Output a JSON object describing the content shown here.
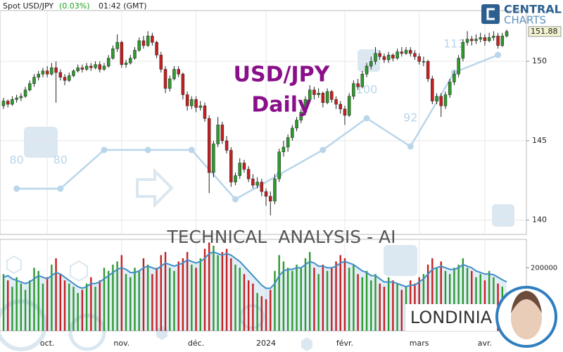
{
  "header": {
    "symbol": "Spot USD/JPY",
    "change": "(0.03%)",
    "time": "01:42 (GMT)"
  },
  "watermark": {
    "line1": "USD/JPY",
    "line2": "Daily",
    "banner": "TECHNICAL  ANALYSIS - AI",
    "author": "LONDINIA"
  },
  "brand": {
    "line1": "CENTRAL",
    "line2": "CHARTS"
  },
  "chart_data": [
    {
      "type": "candlestick",
      "up_color": "#2e9a2e",
      "down_color": "#c62020",
      "grid": true,
      "xlim": [
        -0.8,
        119.5
      ],
      "ylim": [
        139.1,
        153.2
      ],
      "yticks": [
        140,
        145,
        150
      ],
      "xticks": [
        {
          "value": 10,
          "label": "oct."
        },
        {
          "value": 27,
          "label": "nov."
        },
        {
          "value": 44,
          "label": "déc."
        },
        {
          "value": 60,
          "label": "2024"
        },
        {
          "value": 78,
          "label": "févr."
        },
        {
          "value": 95,
          "label": "mars"
        },
        {
          "value": 110,
          "label": "avr."
        }
      ],
      "ohlc": [
        [
          147.2,
          147.7,
          147.0,
          147.5
        ],
        [
          147.5,
          147.6,
          147.1,
          147.3
        ],
        [
          147.3,
          147.8,
          147.2,
          147.6
        ],
        [
          147.6,
          147.9,
          147.4,
          147.7
        ],
        [
          147.7,
          148.0,
          147.5,
          147.8
        ],
        [
          147.8,
          148.4,
          147.7,
          148.2
        ],
        [
          148.2,
          148.8,
          148.1,
          148.6
        ],
        [
          148.6,
          149.2,
          148.4,
          149.0
        ],
        [
          149.0,
          149.4,
          148.8,
          149.2
        ],
        [
          149.2,
          149.6,
          149.0,
          149.4
        ],
        [
          149.4,
          149.7,
          149.0,
          149.2
        ],
        [
          149.2,
          149.9,
          149.1,
          149.6
        ],
        [
          149.6,
          150.0,
          147.4,
          149.3
        ],
        [
          149.3,
          149.5,
          148.8,
          149.0
        ],
        [
          149.0,
          149.2,
          148.5,
          148.8
        ],
        [
          148.8,
          149.3,
          148.7,
          149.1
        ],
        [
          149.1,
          149.5,
          149.0,
          149.4
        ],
        [
          149.4,
          149.8,
          149.3,
          149.6
        ],
        [
          149.6,
          149.8,
          149.3,
          149.5
        ],
        [
          149.5,
          149.9,
          149.4,
          149.7
        ],
        [
          149.7,
          149.9,
          149.4,
          149.6
        ],
        [
          149.6,
          150.0,
          149.5,
          149.8
        ],
        [
          149.8,
          150.0,
          149.3,
          149.5
        ],
        [
          149.5,
          149.9,
          149.4,
          149.7
        ],
        [
          149.7,
          150.4,
          149.6,
          150.2
        ],
        [
          150.2,
          151.0,
          150.1,
          150.8
        ],
        [
          150.8,
          151.7,
          150.6,
          151.2
        ],
        [
          151.2,
          151.3,
          149.6,
          149.8
        ],
        [
          149.8,
          150.1,
          149.6,
          149.9
        ],
        [
          149.9,
          150.4,
          149.8,
          150.2
        ],
        [
          150.2,
          150.9,
          150.1,
          150.7
        ],
        [
          150.7,
          151.5,
          150.6,
          151.3
        ],
        [
          151.3,
          151.6,
          150.8,
          151.0
        ],
        [
          151.0,
          151.9,
          150.9,
          151.6
        ],
        [
          151.6,
          151.8,
          151.0,
          151.2
        ],
        [
          151.2,
          151.3,
          150.2,
          150.4
        ],
        [
          150.4,
          150.6,
          149.3,
          149.5
        ],
        [
          149.5,
          149.7,
          148.0,
          148.3
        ],
        [
          148.3,
          149.1,
          148.1,
          148.9
        ],
        [
          148.9,
          149.7,
          148.8,
          149.5
        ],
        [
          149.5,
          149.7,
          149.0,
          149.2
        ],
        [
          149.2,
          149.3,
          147.6,
          147.9
        ],
        [
          147.9,
          148.1,
          146.9,
          147.2
        ],
        [
          147.2,
          147.8,
          147.0,
          147.6
        ],
        [
          147.6,
          147.8,
          146.8,
          147.1
        ],
        [
          147.1,
          147.5,
          146.9,
          147.2
        ],
        [
          147.2,
          147.4,
          146.2,
          146.4
        ],
        [
          146.4,
          146.6,
          141.7,
          143.0
        ],
        [
          143.0,
          145.0,
          142.7,
          144.8
        ],
        [
          144.8,
          146.5,
          144.6,
          146.0
        ],
        [
          146.0,
          146.2,
          144.8,
          145.0
        ],
        [
          145.0,
          145.3,
          144.2,
          144.4
        ],
        [
          144.4,
          144.6,
          142.1,
          142.4
        ],
        [
          142.4,
          143.0,
          142.2,
          142.8
        ],
        [
          142.8,
          143.9,
          142.6,
          143.6
        ],
        [
          143.6,
          143.8,
          143.0,
          143.2
        ],
        [
          143.2,
          143.4,
          142.4,
          142.6
        ],
        [
          142.6,
          142.9,
          142.0,
          142.2
        ],
        [
          142.2,
          142.7,
          142.0,
          142.4
        ],
        [
          142.4,
          142.6,
          141.5,
          141.8
        ],
        [
          141.8,
          142.0,
          140.9,
          141.5
        ],
        [
          141.5,
          141.8,
          140.3,
          141.2
        ],
        [
          141.2,
          142.9,
          141.0,
          142.6
        ],
        [
          142.6,
          144.5,
          142.4,
          144.3
        ],
        [
          144.3,
          145.0,
          144.0,
          144.6
        ],
        [
          144.6,
          145.4,
          144.3,
          145.2
        ],
        [
          145.2,
          146.0,
          145.0,
          145.8
        ],
        [
          145.8,
          146.5,
          145.6,
          146.3
        ],
        [
          146.3,
          147.0,
          146.1,
          146.8
        ],
        [
          146.8,
          147.8,
          146.6,
          147.6
        ],
        [
          147.6,
          148.5,
          147.4,
          148.2
        ],
        [
          148.2,
          148.4,
          147.6,
          147.9
        ],
        [
          147.9,
          148.3,
          147.7,
          148.0
        ],
        [
          148.0,
          148.1,
          147.1,
          147.4
        ],
        [
          147.4,
          148.3,
          147.3,
          148.1
        ],
        [
          148.1,
          148.2,
          147.4,
          147.6
        ],
        [
          147.6,
          147.8,
          147.0,
          147.3
        ],
        [
          147.3,
          147.5,
          146.7,
          147.0
        ],
        [
          147.0,
          147.2,
          146.0,
          146.6
        ],
        [
          146.6,
          148.0,
          146.5,
          147.8
        ],
        [
          147.8,
          148.8,
          147.6,
          148.6
        ],
        [
          148.6,
          148.9,
          148.2,
          148.4
        ],
        [
          148.4,
          149.4,
          148.3,
          149.2
        ],
        [
          149.2,
          149.9,
          149.0,
          149.7
        ],
        [
          149.7,
          150.3,
          149.5,
          150.0
        ],
        [
          150.0,
          150.9,
          149.8,
          150.5
        ],
        [
          150.5,
          150.7,
          150.1,
          150.3
        ],
        [
          150.3,
          150.5,
          149.9,
          150.1
        ],
        [
          150.1,
          150.6,
          149.9,
          150.4
        ],
        [
          150.4,
          150.5,
          150.0,
          150.2
        ],
        [
          150.2,
          150.8,
          150.1,
          150.6
        ],
        [
          150.6,
          150.9,
          150.3,
          150.5
        ],
        [
          150.5,
          150.9,
          150.4,
          150.7
        ],
        [
          150.7,
          150.9,
          150.3,
          150.5
        ],
        [
          150.5,
          150.7,
          150.1,
          150.3
        ],
        [
          150.3,
          150.5,
          149.8,
          150.0
        ],
        [
          150.0,
          150.3,
          149.7,
          150.0
        ],
        [
          150.0,
          150.1,
          148.7,
          148.9
        ],
        [
          148.9,
          149.1,
          147.3,
          147.5
        ],
        [
          147.5,
          148.0,
          147.3,
          147.8
        ],
        [
          147.8,
          148.0,
          146.5,
          147.2
        ],
        [
          147.2,
          148.1,
          147.0,
          147.9
        ],
        [
          147.9,
          148.9,
          147.7,
          148.7
        ],
        [
          148.7,
          149.4,
          148.5,
          149.2
        ],
        [
          149.2,
          150.4,
          149.0,
          150.2
        ],
        [
          150.2,
          151.4,
          150.0,
          151.2
        ],
        [
          151.2,
          151.9,
          151.0,
          151.4
        ],
        [
          151.4,
          151.6,
          151.0,
          151.3
        ],
        [
          151.3,
          151.7,
          151.1,
          151.4
        ],
        [
          151.4,
          151.8,
          151.2,
          151.5
        ],
        [
          151.5,
          151.7,
          151.0,
          151.3
        ],
        [
          151.3,
          151.8,
          151.2,
          151.5
        ],
        [
          151.5,
          151.9,
          151.3,
          151.6
        ],
        [
          151.6,
          151.8,
          150.8,
          151.0
        ],
        [
          151.0,
          151.8,
          150.9,
          151.6
        ],
        [
          151.6,
          152.0,
          151.5,
          151.88
        ]
      ]
    },
    {
      "type": "bar",
      "ylim": [
        0,
        290000
      ],
      "yticks": [
        200000
      ],
      "values": [
        180000,
        160000,
        140000,
        170000,
        150000,
        130000,
        160000,
        200000,
        190000,
        150000,
        170000,
        210000,
        230000,
        180000,
        160000,
        150000,
        140000,
        120000,
        130000,
        150000,
        170000,
        140000,
        160000,
        200000,
        190000,
        210000,
        220000,
        240000,
        180000,
        170000,
        200000,
        190000,
        230000,
        210000,
        180000,
        200000,
        240000,
        250000,
        200000,
        190000,
        220000,
        230000,
        250000,
        210000,
        200000,
        230000,
        260000,
        280000,
        270000,
        240000,
        250000,
        260000,
        230000,
        210000,
        200000,
        180000,
        160000,
        150000,
        120000,
        110000,
        100000,
        130000,
        190000,
        240000,
        220000,
        200000,
        190000,
        210000,
        200000,
        230000,
        250000,
        200000,
        180000,
        210000,
        190000,
        200000,
        220000,
        240000,
        230000,
        200000,
        210000,
        180000,
        170000,
        190000,
        160000,
        180000,
        150000,
        140000,
        170000,
        160000,
        150000,
        130000,
        140000,
        160000,
        150000,
        170000,
        180000,
        210000,
        230000,
        200000,
        220000,
        190000,
        180000,
        200000,
        210000,
        230000,
        200000,
        190000,
        170000,
        180000,
        160000,
        190000,
        170000,
        150000,
        140000,
        120000
      ],
      "line": {
        "color": "#3f8fc8",
        "values": [
          170000,
          175000,
          165000,
          160000,
          155000,
          150000,
          155000,
          165000,
          175000,
          170000,
          165000,
          175000,
          185000,
          180000,
          170000,
          160000,
          150000,
          140000,
          135000,
          140000,
          150000,
          150000,
          155000,
          165000,
          175000,
          185000,
          195000,
          200000,
          195000,
          185000,
          185000,
          190000,
          200000,
          205000,
          200000,
          195000,
          205000,
          215000,
          210000,
          205000,
          210000,
          215000,
          225000,
          220000,
          215000,
          220000,
          230000,
          245000,
          250000,
          245000,
          240000,
          245000,
          240000,
          230000,
          220000,
          205000,
          190000,
          175000,
          160000,
          145000,
          135000,
          135000,
          150000,
          175000,
          190000,
          195000,
          195000,
          200000,
          200000,
          210000,
          220000,
          215000,
          205000,
          205000,
          200000,
          200000,
          205000,
          215000,
          220000,
          215000,
          210000,
          200000,
          190000,
          185000,
          175000,
          175000,
          165000,
          155000,
          155000,
          155000,
          150000,
          145000,
          140000,
          145000,
          145000,
          155000,
          165000,
          180000,
          195000,
          200000,
          205000,
          200000,
          195000,
          195000,
          200000,
          210000,
          205000,
          200000,
          190000,
          185000,
          180000,
          180000,
          178000,
          170000,
          162000,
          155000
        ]
      }
    },
    {
      "type": "line",
      "color": "#b9d6ea",
      "ylim": [
        67,
        130.6
      ],
      "x": [
        3,
        13,
        23,
        33,
        43,
        53,
        63,
        73,
        83,
        93,
        103,
        113
      ],
      "values": [
        80,
        80,
        91,
        91,
        91,
        77,
        84,
        91,
        100,
        92,
        113,
        118
      ],
      "value_labels": [
        "80",
        "80",
        null,
        null,
        null,
        null,
        null,
        null,
        "100",
        "92",
        "113",
        null
      ]
    }
  ]
}
